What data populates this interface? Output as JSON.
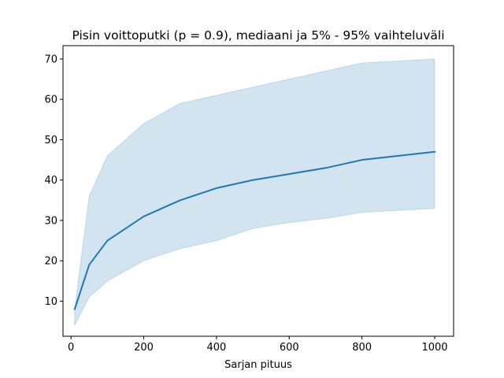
{
  "chart_data": {
    "type": "line",
    "title": "Pisin voittoputki (p = 0.9), mediaani ja 5% - 95% vaihteluväli",
    "xlabel": "Sarjan pituus",
    "ylabel": "",
    "xlim": [
      -22,
      1052
    ],
    "ylim": [
      1.3,
      73.3
    ],
    "x_ticks": [
      0,
      200,
      400,
      600,
      800,
      1000
    ],
    "y_ticks": [
      10,
      20,
      30,
      40,
      50,
      60,
      70
    ],
    "grid": false,
    "series": [
      {
        "role": "median",
        "color": "#1f77b4",
        "x": [
          10,
          50,
          100,
          200,
          300,
          400,
          500,
          600,
          700,
          800,
          900,
          1000
        ],
        "values": [
          8,
          19,
          25,
          31,
          35,
          38,
          40,
          41.5,
          43,
          45,
          46,
          47
        ]
      }
    ],
    "band": {
      "role": "5%-95% range",
      "color": "#1f77b4",
      "opacity": 0.2,
      "x": [
        10,
        50,
        100,
        200,
        300,
        400,
        500,
        600,
        700,
        800,
        900,
        1000
      ],
      "lower": [
        4,
        11,
        15,
        20,
        23,
        25,
        28,
        29.5,
        30.5,
        32,
        32.5,
        33
      ],
      "upper": [
        8,
        36,
        46,
        54,
        59,
        61,
        63,
        65,
        67,
        69,
        69.5,
        70
      ]
    }
  }
}
